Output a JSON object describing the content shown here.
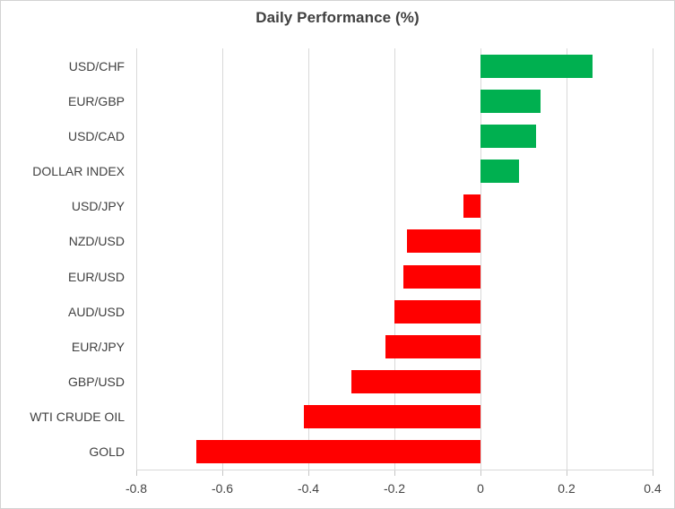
{
  "title": "Daily Performance (%)",
  "colors": {
    "positive_bar": "#00B050",
    "negative_bar": "#FF0000",
    "gridline": "#D9D9D9",
    "tick": "#C6C6C6",
    "title_text": "#404040",
    "category_text": "#404040",
    "tick_text": "#444444",
    "border": "#D3D3D3",
    "background": "#FFFFFF"
  },
  "chart_data": {
    "type": "bar",
    "orientation": "horizontal",
    "title": "Daily Performance (%)",
    "categories": [
      "USD/CHF",
      "EUR/GBP",
      "USD/CAD",
      "DOLLAR INDEX",
      "USD/JPY",
      "NZD/USD",
      "EUR/USD",
      "AUD/USD",
      "EUR/JPY",
      "GBP/USD",
      "WTI CRUDE OIL",
      "GOLD"
    ],
    "values": [
      0.26,
      0.14,
      0.13,
      0.09,
      -0.04,
      -0.17,
      -0.18,
      -0.2,
      -0.22,
      -0.3,
      -0.41,
      -0.66
    ],
    "xlim": [
      -0.8,
      0.4
    ],
    "xticks": [
      -0.8,
      -0.6,
      -0.4,
      -0.2,
      0,
      0.2,
      0.4
    ],
    "xtick_labels": [
      "-0.8",
      "-0.6",
      "-0.4",
      "-0.2",
      "0",
      "0.2",
      "0.4"
    ],
    "xlabel": "",
    "ylabel": "",
    "grid": "vertical-gridlines-on",
    "legend": "none",
    "bar_color_rule": "positive=green, negative=red"
  }
}
